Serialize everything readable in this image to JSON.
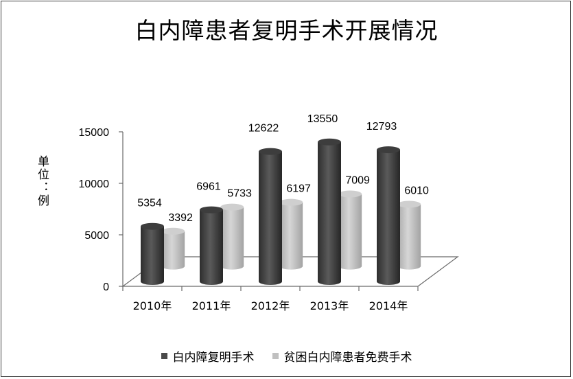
{
  "chart_data": {
    "type": "bar",
    "title": "白内障患者复明手术开展情况",
    "ylabel": "单位：例",
    "categories": [
      "2010年",
      "2011年",
      "2012年",
      "2013年",
      "2014年"
    ],
    "yticks": [
      0,
      5000,
      10000,
      15000
    ],
    "ylim": [
      0,
      15000
    ],
    "series": [
      {
        "name": "白内障复明手术",
        "color": "#4a4a4a",
        "values": [
          5354,
          6961,
          12622,
          13550,
          12793
        ]
      },
      {
        "name": "贫困白内障患者免费手术",
        "color": "#c0c0c0",
        "values": [
          3392,
          5733,
          6197,
          7009,
          6010
        ]
      }
    ],
    "legend_position": "bottom",
    "grid": false
  }
}
